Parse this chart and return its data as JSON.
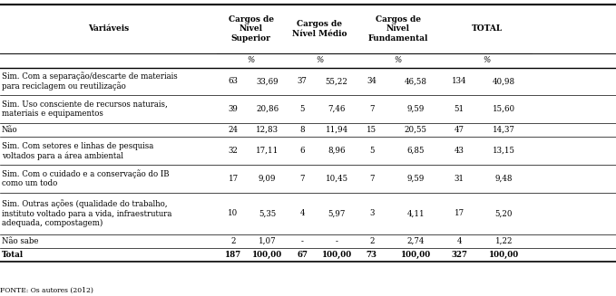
{
  "col_headers_line1": [
    "Variáveis",
    "Cargos de",
    "Cargos de",
    "Cargos de",
    "TOTAL"
  ],
  "col_headers_line2": [
    "",
    "Nível",
    "Nível Médio",
    "Nível",
    ""
  ],
  "col_headers_line3": [
    "",
    "Superior",
    "",
    "Fundamental",
    ""
  ],
  "sub_headers": [
    "",
    "%",
    "%",
    "%",
    "%"
  ],
  "rows": [
    {
      "label": "Sim. Com a separação/descarte de materiais\npara reciclagem ou reutilização",
      "values": [
        "63",
        "33,69",
        "37",
        "55,22",
        "34",
        "46,58",
        "134",
        "40,98"
      ],
      "bold": false
    },
    {
      "label": "Sim. Uso consciente de recursos naturais,\nmateriais e equipamentos",
      "values": [
        "39",
        "20,86",
        "5",
        "7,46",
        "7",
        "9,59",
        "51",
        "15,60"
      ],
      "bold": false
    },
    {
      "label": "Não",
      "values": [
        "24",
        "12,83",
        "8",
        "11,94",
        "15",
        "20,55",
        "47",
        "14,37"
      ],
      "bold": false
    },
    {
      "label": "Sim. Com setores e linhas de pesquisa\nvoltados para a área ambiental",
      "values": [
        "32",
        "17,11",
        "6",
        "8,96",
        "5",
        "6,85",
        "43",
        "13,15"
      ],
      "bold": false
    },
    {
      "label": "Sim. Com o cuidado e a conservação do IB\ncomo um todo",
      "values": [
        "17",
        "9,09",
        "7",
        "10,45",
        "7",
        "9,59",
        "31",
        "9,48"
      ],
      "bold": false
    },
    {
      "label": "Sim. Outras ações (qualidade do trabalho,\ninstituto voltado para a vida, infraestrutura\nadequada, compostagem)",
      "values": [
        "10",
        "5,35",
        "4",
        "5,97",
        "3",
        "4,11",
        "17",
        "5,20"
      ],
      "bold": false
    },
    {
      "label": "Não sabe",
      "values": [
        "2",
        "1,07",
        "-",
        "-",
        "2",
        "2,74",
        "4",
        "1,22"
      ],
      "bold": false
    },
    {
      "label": "Total",
      "values": [
        "187",
        "100,00",
        "67",
        "100,00",
        "73",
        "100,00",
        "327",
        "100,00"
      ],
      "bold": true
    }
  ],
  "fonte": "FONTE: Os autores (2012)",
  "fs_header": 6.5,
  "fs_data": 6.2,
  "fs_fonte": 5.5
}
